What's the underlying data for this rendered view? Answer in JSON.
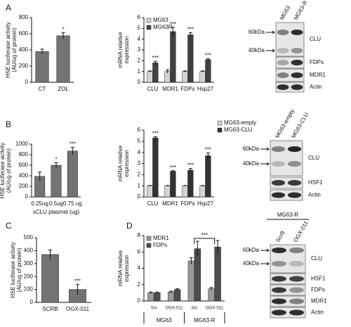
{
  "panels": [
    "A",
    "B",
    "C",
    "D"
  ],
  "chart_data": [
    {
      "type": "bar",
      "ylabel": [
        "HSE luciferase activity",
        "(AU/ug of protein)"
      ],
      "categories": [
        "CT",
        "ZOL"
      ],
      "series": [
        {
          "name": "HSE luciferase activity",
          "color": "#737373",
          "values": [
            380,
            575
          ],
          "errors": [
            30,
            40
          ],
          "annotations": [
            null,
            "*"
          ]
        }
      ],
      "ylim": [
        0,
        800
      ],
      "yticks": [
        0,
        200,
        400,
        600,
        800
      ]
    },
    {
      "type": "bar",
      "ylabel": [
        "mRNA relative",
        "expression"
      ],
      "categories": [
        "CLU",
        "MDR1",
        "FDPs",
        "Hsp27"
      ],
      "legend": "upper left",
      "series": [
        {
          "name": "MG63",
          "color": "#d4d4d4",
          "values": [
            1,
            1,
            1,
            1
          ],
          "errors": [
            0.05,
            0.15,
            0.05,
            0.05
          ],
          "annotations": [
            null,
            null,
            null,
            null
          ]
        },
        {
          "name": "MG63R",
          "color": "#404040",
          "values": [
            1.8,
            4.7,
            4.4,
            2.1
          ],
          "errors": [
            0.15,
            0.4,
            0.2,
            0.1
          ],
          "annotations": [
            "***",
            "***",
            "***",
            "***"
          ]
        }
      ],
      "ylim": [
        0,
        6
      ],
      "yticks": [
        0,
        1,
        2,
        3,
        4,
        5,
        6
      ]
    },
    {
      "type": "bar",
      "ylabel": [
        "HSE luciferase activity",
        "(AU/ug of protein)"
      ],
      "xlabel": "sCLU plasmid (ug)",
      "categories": [
        "0.25ug",
        "0.5ug",
        "0.75 ug"
      ],
      "series": [
        {
          "name": "HSE luciferase activity",
          "color": "#737373",
          "values": [
            390,
            600,
            870
          ],
          "errors": [
            80,
            50,
            70
          ],
          "annotations": [
            null,
            "*",
            "***"
          ]
        }
      ],
      "ylim": [
        0,
        1000
      ],
      "yticks": [
        0,
        200,
        400,
        600,
        800,
        1000
      ]
    },
    {
      "type": "bar",
      "ylabel": [
        "mRNA relative",
        "expression"
      ],
      "categories": [
        "CLU",
        "MDR1",
        "FDPs",
        "Hsp27"
      ],
      "legend": "upper right",
      "series": [
        {
          "name": "MG63-empty",
          "color": "#d4d4d4",
          "values": [
            1,
            1,
            1,
            1
          ],
          "errors": [
            0.03,
            0.03,
            0.03,
            0.03
          ],
          "annotations": [
            null,
            null,
            null,
            null
          ]
        },
        {
          "name": "MG63-CLU",
          "color": "#333333",
          "values": [
            5.3,
            2.3,
            2.4,
            3.7
          ],
          "errors": [
            0.1,
            0.05,
            0.15,
            0.25
          ],
          "annotations": [
            "***",
            "***",
            "***",
            "***"
          ]
        }
      ],
      "ylim": [
        0,
        6
      ],
      "yticks": [
        0,
        1,
        2,
        3,
        4,
        5,
        6
      ]
    },
    {
      "type": "bar",
      "ylabel": [
        "HSE luciferase activity",
        "(AU/ug of protein)"
      ],
      "categories": [
        "SCRB",
        "OGX-011"
      ],
      "series": [
        {
          "name": "HSE luciferase activity",
          "color": "#737373",
          "values": [
            370,
            100
          ],
          "errors": [
            35,
            40
          ],
          "annotations": [
            null,
            "***"
          ]
        }
      ],
      "ylim": [
        0,
        500
      ],
      "yticks": [
        0,
        100,
        200,
        300,
        400,
        500
      ]
    },
    {
      "type": "bar",
      "ylabel": [
        "mRNA relative",
        "expression"
      ],
      "categories": [
        "Scr",
        "OGX-011",
        "Scr",
        "OGX-011"
      ],
      "groups": [
        "MG63",
        "MG63-R"
      ],
      "legend": "upper left",
      "bracket": "***",
      "series": [
        {
          "name": "MDR1",
          "color": "#9a9a9a",
          "values": [
            1.0,
            1.1,
            4.9,
            1.5
          ],
          "errors": [
            0.1,
            0.1,
            0.4,
            0.15
          ],
          "annotations": [
            null,
            null,
            null,
            null
          ]
        },
        {
          "name": "FDPs",
          "color": "#4d4d4d",
          "values": [
            1.0,
            1.4,
            6.4,
            6.6
          ],
          "errors": [
            0.1,
            0.1,
            0.9,
            0.8
          ],
          "annotations": [
            null,
            null,
            null,
            null
          ]
        }
      ],
      "ylim": [
        0,
        8
      ],
      "yticks": [
        0,
        2,
        4,
        6,
        8
      ]
    }
  ],
  "blots": [
    {
      "lanes": [
        "MG63",
        "MG63-R"
      ],
      "markers": [
        "60kDa",
        "40kDa"
      ],
      "bands": [
        "CLU",
        "FDPs",
        "MDR1",
        "Actin"
      ]
    },
    {
      "lanes": [
        "MG63-empty",
        "MG63-CLU"
      ],
      "markers": [
        "60kDa",
        "40kDa"
      ],
      "bands": [
        "CLU",
        "HSF1",
        "Actin"
      ]
    },
    {
      "header": "MG63-R",
      "lanes": [
        "ScrB",
        "OGX-011"
      ],
      "markers": [
        "60kDa",
        "40kDa"
      ],
      "bands": [
        "CLU",
        "HSF1",
        "FDPs",
        "MDR1",
        "Actin"
      ]
    }
  ]
}
